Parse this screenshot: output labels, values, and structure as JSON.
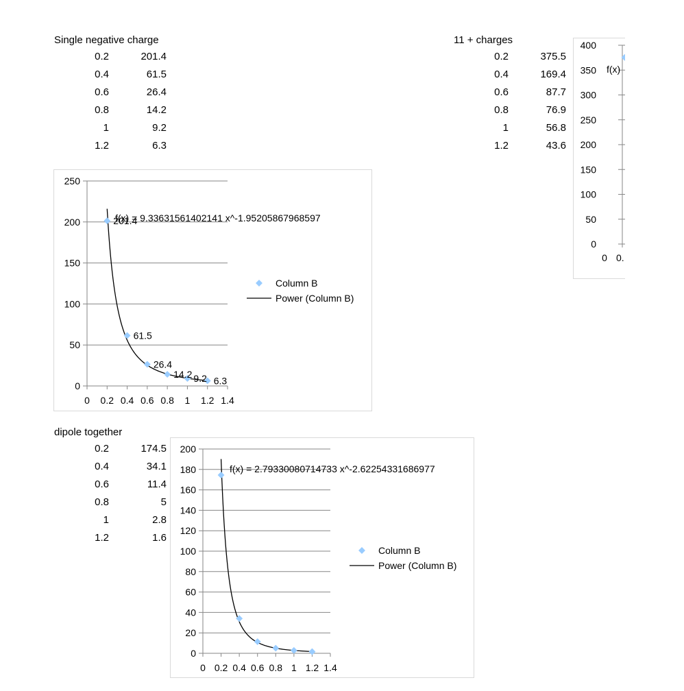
{
  "tables": [
    {
      "title": "Single negative charge",
      "rows": [
        [
          "0.2",
          "201.4"
        ],
        [
          "0.4",
          "61.5"
        ],
        [
          "0.6",
          "26.4"
        ],
        [
          "0.8",
          "14.2"
        ],
        [
          "1",
          "9.2"
        ],
        [
          "1.2",
          "6.3"
        ]
      ]
    },
    {
      "title": "11 + charges",
      "rows": [
        [
          "0.2",
          "375.5"
        ],
        [
          "0.4",
          "169.4"
        ],
        [
          "0.6",
          "87.7"
        ],
        [
          "0.8",
          "76.9"
        ],
        [
          "1",
          "56.8"
        ],
        [
          "1.2",
          "43.6"
        ]
      ]
    },
    {
      "title": "dipole together",
      "rows": [
        [
          "0.2",
          "174.5"
        ],
        [
          "0.4",
          "34.1"
        ],
        [
          "0.6",
          "11.4"
        ],
        [
          "0.8",
          "5"
        ],
        [
          "1",
          "2.8"
        ],
        [
          "1.2",
          "1.6"
        ]
      ]
    }
  ],
  "chart_data": [
    {
      "type": "scatter",
      "x": [
        0.2,
        0.4,
        0.6,
        0.8,
        1,
        1.2
      ],
      "series": [
        {
          "name": "Column B",
          "values": [
            201.4,
            61.5,
            26.4,
            14.2,
            9.2,
            6.3
          ],
          "color": "#99ccff"
        },
        {
          "name": "Power (Column B)",
          "trendline": {
            "type": "power",
            "a": 9.33631561402141,
            "b": -1.95205867968597
          },
          "color": "#000000"
        }
      ],
      "data_labels": [
        "201.4",
        "61.5",
        "26.4",
        "14.2",
        "9.2",
        "6.3"
      ],
      "equation": "f(x) = 9.33631561402141 x^-1.95205867968597",
      "xlim": [
        0,
        1.4
      ],
      "ylim": [
        0,
        250
      ],
      "xticks": [
        "0",
        "0.2",
        "0.4",
        "0.6",
        "0.8",
        "1",
        "1.2",
        "1.4"
      ],
      "yticks": [
        "0",
        "50",
        "100",
        "150",
        "200",
        "250"
      ],
      "grid": true,
      "legend": "right"
    },
    {
      "type": "scatter",
      "x": [
        0.2,
        0.4,
        0.6,
        0.8,
        1,
        1.2
      ],
      "series": [
        {
          "name": "Column B",
          "values": [
            174.5,
            34.1,
            11.4,
            5,
            2.8,
            1.6
          ],
          "color": "#99ccff"
        },
        {
          "name": "Power (Column B)",
          "trendline": {
            "type": "power",
            "a": 2.79330080714733,
            "b": -2.62254331686977
          },
          "color": "#000000"
        }
      ],
      "equation": "f(x) = 2.79330080714733 x^-2.62254331686977",
      "xlim": [
        0,
        1.4
      ],
      "ylim": [
        0,
        200
      ],
      "xticks": [
        "0",
        "0.2",
        "0.4",
        "0.6",
        "0.8",
        "1",
        "1.2",
        "1.4"
      ],
      "yticks": [
        "0",
        "20",
        "40",
        "60",
        "80",
        "100",
        "120",
        "140",
        "160",
        "180",
        "200"
      ],
      "grid": true,
      "legend": "right"
    },
    {
      "type": "scatter",
      "x": [
        0.2
      ],
      "series": [
        {
          "name": "",
          "values": [
            375.5
          ],
          "color": "#99ccff"
        }
      ],
      "equation_visible": "f(x)",
      "xlim": [
        0,
        1.4
      ],
      "ylim": [
        0,
        400
      ],
      "xticks": [
        "0",
        "0."
      ],
      "yticks": [
        "0",
        "50",
        "100",
        "150",
        "200",
        "250",
        "300",
        "350",
        "400"
      ],
      "grid": true,
      "truncated": true
    }
  ]
}
